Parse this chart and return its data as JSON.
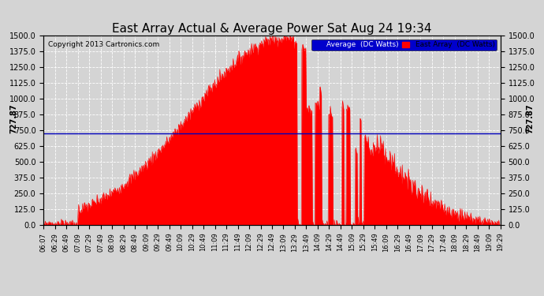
{
  "title": "East Array Actual & Average Power Sat Aug 24 19:34",
  "copyright": "Copyright 2013 Cartronics.com",
  "average_label": "Average  (DC Watts)",
  "east_array_label": "East Array  (DC Watts)",
  "average_value": 727.87,
  "ylim": [
    0.0,
    1500.0
  ],
  "yticks": [
    0.0,
    125.0,
    250.0,
    375.0,
    500.0,
    625.0,
    750.0,
    875.0,
    1000.0,
    1125.0,
    1250.0,
    1375.0,
    1500.0
  ],
  "background_color": "#d4d4d4",
  "plot_bg_color": "#d4d4d4",
  "grid_color": "#ffffff",
  "fill_color": "#ff0000",
  "line_color": "#ff0000",
  "average_line_color": "#0000bb",
  "title_fontsize": 11,
  "axis_fontsize": 7,
  "xtick_labels": [
    "06:07",
    "06:29",
    "06:49",
    "07:09",
    "07:29",
    "07:49",
    "08:09",
    "08:29",
    "08:49",
    "09:09",
    "09:29",
    "09:49",
    "10:09",
    "10:29",
    "10:49",
    "11:09",
    "11:29",
    "11:49",
    "12:09",
    "12:29",
    "12:49",
    "13:09",
    "13:29",
    "13:49",
    "14:09",
    "14:29",
    "14:49",
    "15:09",
    "15:29",
    "15:49",
    "16:09",
    "16:29",
    "16:49",
    "17:09",
    "17:29",
    "17:49",
    "18:09",
    "18:29",
    "18:49",
    "19:09",
    "19:29"
  ],
  "num_points": 820
}
